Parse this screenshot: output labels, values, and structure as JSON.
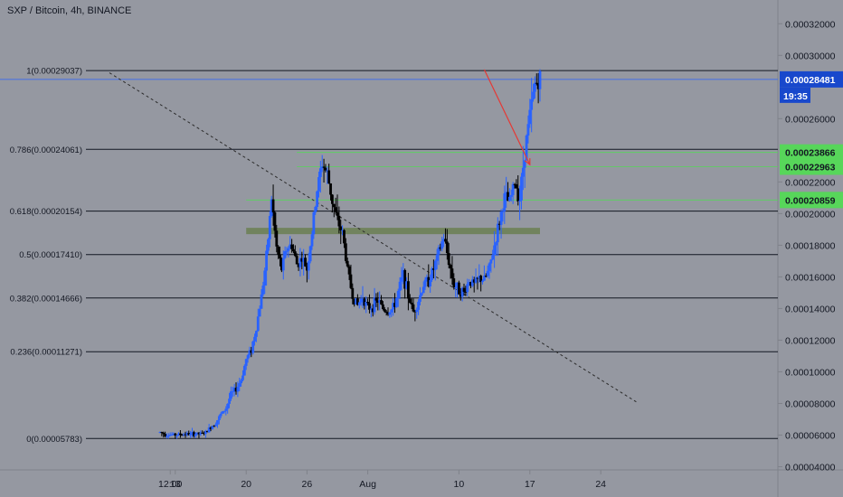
{
  "chart_title": "SXP / Bitcoin, 4h, BINANCE",
  "colors": {
    "background": "#9598a1",
    "panel_border": "#7f828a",
    "text": "#131722",
    "candle_up": "#2962ff",
    "candle_down": "#000000",
    "fib_line": "#131722",
    "trendline": "#2b2b2b",
    "green_level": "#57d65a",
    "price_tag_bg": "#1848cc",
    "projection_arrow": "#e53935",
    "zone_fill": "#6b7f52"
  },
  "time_tag": "19:35",
  "chart_data": {
    "type": "candlestick",
    "title": "SXP / Bitcoin, 4h, BINANCE",
    "xlabel": "",
    "ylabel": "",
    "ylim": [
      3.8e-05,
      0.000335
    ],
    "x_ticks": [
      "12:00",
      "13",
      "20",
      "26",
      "Aug",
      "10",
      "17",
      "24"
    ],
    "x_tick_days": [
      0.5,
      1,
      8,
      14,
      20,
      29,
      36,
      43
    ],
    "y_ticks": [
      "0.00004000",
      "0.00006000",
      "0.00008000",
      "0.00010000",
      "0.00012000",
      "0.00014000",
      "0.00016000",
      "0.00018000",
      "0.00020000",
      "0.00022000",
      "0.00026000",
      "0.00030000",
      "0.00032000"
    ],
    "fib_levels": [
      {
        "label": "1(0.00029037)",
        "value": 0.00029037
      },
      {
        "label": "0.786(0.00024061)",
        "value": 0.00024061
      },
      {
        "label": "0.618(0.00020154)",
        "value": 0.00020154
      },
      {
        "label": "0.5(0.00017410)",
        "value": 0.0001741
      },
      {
        "label": "0.382(0.00014666)",
        "value": 0.00014666
      },
      {
        "label": "0.236(0.00011271)",
        "value": 0.00011271
      },
      {
        "label": "0(0.00005783)",
        "value": 5.783e-05
      }
    ],
    "last_price": {
      "label": "0.00028481",
      "value": 0.00028481
    },
    "green_levels": [
      {
        "label": "0.00023866",
        "value": 0.00023866
      },
      {
        "label": "0.00022963",
        "value": 0.00022963
      },
      {
        "label": "0.00020859",
        "value": 0.00020859
      }
    ],
    "zone": {
      "day_start": 8,
      "day_end": 37,
      "low": 0.000187,
      "high": 0.000191
    },
    "trendline": {
      "start": {
        "day": -5.5,
        "value": 0.000289
      },
      "end": {
        "day": 46.5,
        "value": 8.1e-05
      }
    },
    "projection": {
      "start": {
        "day": 31.5,
        "value": 0.000291
      },
      "end": {
        "day": 36,
        "value": 0.000231
      }
    },
    "series": [
      {
        "name": "SXP/BTC",
        "points": [
          [
            -0.5,
            6.18e-05
          ],
          [
            0,
            6.05e-05
          ],
          [
            0.5,
            6.03e-05
          ],
          [
            1,
            6.01e-05
          ],
          [
            1.5,
            6.04e-05
          ],
          [
            2,
            6.07e-05
          ],
          [
            2.5,
            6.04e-05
          ],
          [
            3,
            6.08e-05
          ],
          [
            3.5,
            6.06e-05
          ],
          [
            4,
            6.15e-05
          ],
          [
            4.5,
            6.5e-05
          ],
          [
            5,
            6.8e-05
          ],
          [
            5.5,
            7.3e-05
          ],
          [
            6,
            7.7e-05
          ],
          [
            6.5,
            8.6e-05
          ],
          [
            7,
            8.9e-05
          ],
          [
            7.5,
            9.5e-05
          ],
          [
            8,
            0.000108
          ],
          [
            8.5,
            0.000114
          ],
          [
            9,
            0.000128
          ],
          [
            9.5,
            0.000148
          ],
          [
            10,
            0.000172
          ],
          [
            10.5,
            0.00021
          ],
          [
            11,
            0.000178
          ],
          [
            11.5,
            0.000165
          ],
          [
            12,
            0.000178
          ],
          [
            12.5,
            0.00018
          ],
          [
            13,
            0.000168
          ],
          [
            13.5,
            0.000172
          ],
          [
            14,
            0.000165
          ],
          [
            14.5,
            0.000188
          ],
          [
            15,
            0.000215
          ],
          [
            15.5,
            0.000232
          ],
          [
            16,
            0.000225
          ],
          [
            16.5,
            0.000208
          ],
          [
            17,
            0.000195
          ],
          [
            17.5,
            0.000188
          ],
          [
            18,
            0.000165
          ],
          [
            18.5,
            0.000148
          ],
          [
            19,
            0.000142
          ],
          [
            19.5,
            0.000148
          ],
          [
            20,
            0.00014
          ],
          [
            20.5,
            0.000142
          ],
          [
            21,
            0.000145
          ],
          [
            21.5,
            0.00014
          ],
          [
            22,
            0.000138
          ],
          [
            22.5,
            0.00014
          ],
          [
            23,
            0.00015
          ],
          [
            23.5,
            0.000162
          ],
          [
            24,
            0.000148
          ],
          [
            24.5,
            0.000138
          ],
          [
            25,
            0.000145
          ],
          [
            25.5,
            0.000155
          ],
          [
            26,
            0.000158
          ],
          [
            26.5,
            0.000165
          ],
          [
            27,
            0.000175
          ],
          [
            27.5,
            0.000185
          ],
          [
            28,
            0.00017
          ],
          [
            28.5,
            0.000155
          ],
          [
            29,
            0.000152
          ],
          [
            29.5,
            0.00015
          ],
          [
            30,
            0.000158
          ],
          [
            30.5,
            0.000155
          ],
          [
            31,
            0.000159
          ],
          [
            31.5,
            0.000158
          ],
          [
            32,
            0.000165
          ],
          [
            32.5,
            0.00018
          ],
          [
            33,
            0.000195
          ],
          [
            33.5,
            0.00021
          ],
          [
            34,
            0.000207
          ],
          [
            34.5,
            0.00022
          ],
          [
            35,
            0.00021
          ],
          [
            35.5,
            0.00024
          ],
          [
            36,
            0.000262
          ],
          [
            36.5,
            0.000282
          ],
          [
            37,
            0.000285
          ]
        ]
      }
    ]
  }
}
